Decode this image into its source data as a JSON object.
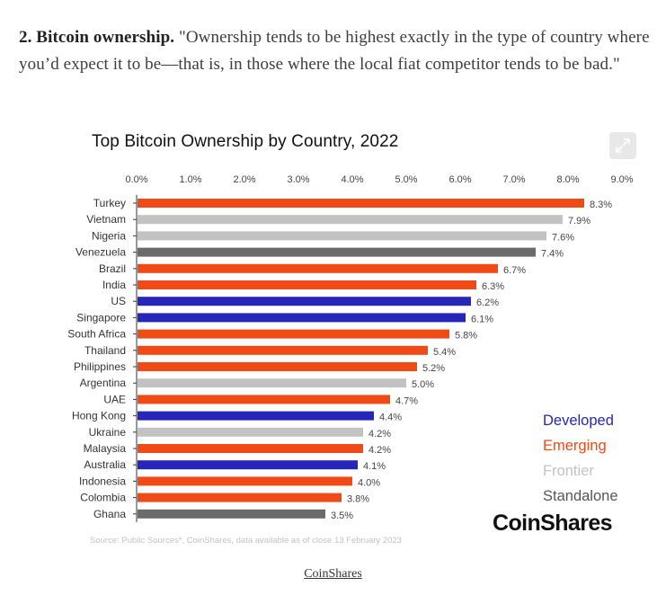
{
  "article": {
    "heading": "2. Bitcoin ownership.",
    "quote": " \"Ownership tends to be highest exactly in the type of country where you’d expect it to be—that is, in those where the local fiat competitor tends to be bad.\""
  },
  "figure": {
    "expand_icon": "expand-icon",
    "brand": "CoinShares",
    "source": "Source: Public Sources*, CoinShares, data available as of close 13 February 2023",
    "caption": "CoinShares"
  },
  "chart_data": {
    "type": "bar",
    "orientation": "horizontal",
    "title": "Top Bitcoin Ownership by Country, 2022",
    "xlabel": "",
    "ylabel": "",
    "xlim": [
      0,
      9
    ],
    "grid": false,
    "axis_position": "top",
    "tick_values": [
      0,
      1,
      2,
      3,
      4,
      5,
      6,
      7,
      8,
      9
    ],
    "tick_labels": [
      "0.0%",
      "1.0%",
      "2.0%",
      "3.0%",
      "4.0%",
      "5.0%",
      "6.0%",
      "7.0%",
      "8.0%",
      "9.0%"
    ],
    "categories": [
      "Turkey",
      "Vietnam",
      "Nigeria",
      "Venezuela",
      "Brazil",
      "India",
      "US",
      "Singapore",
      "South Africa",
      "Thailand",
      "Philippines",
      "Argentina",
      "UAE",
      "Hong Kong",
      "Ukraine",
      "Malaysia",
      "Australia",
      "Indonesia",
      "Colombia",
      "Ghana"
    ],
    "values": [
      8.3,
      7.9,
      7.6,
      7.4,
      6.7,
      6.3,
      6.2,
      6.1,
      5.8,
      5.4,
      5.2,
      5.0,
      4.7,
      4.4,
      4.2,
      4.2,
      4.1,
      4.0,
      3.8,
      3.5
    ],
    "value_labels": [
      "8.3%",
      "7.9%",
      "7.6%",
      "7.4%",
      "6.7%",
      "6.3%",
      "6.2%",
      "6.1%",
      "5.8%",
      "5.4%",
      "5.2%",
      "5.0%",
      "4.7%",
      "4.4%",
      "4.2%",
      "4.2%",
      "4.1%",
      "4.0%",
      "3.8%",
      "3.5%"
    ],
    "groups": [
      "Emerging",
      "Frontier",
      "Frontier",
      "Standalone",
      "Emerging",
      "Emerging",
      "Developed",
      "Developed",
      "Emerging",
      "Emerging",
      "Emerging",
      "Frontier",
      "Emerging",
      "Developed",
      "Frontier",
      "Emerging",
      "Developed",
      "Emerging",
      "Emerging",
      "Standalone"
    ],
    "legend": {
      "placement": "bottom-right",
      "entries": [
        {
          "name": "Developed",
          "color": "#2626b8"
        },
        {
          "name": "Emerging",
          "color": "#f04a16"
        },
        {
          "name": "Frontier",
          "color": "#c2c2c2"
        },
        {
          "name": "Standalone",
          "color": "#6b6b6b"
        }
      ]
    },
    "colors": {
      "Developed": "#2626b8",
      "Emerging": "#f04a16",
      "Frontier": "#c2c2c2",
      "Standalone": "#6b6b6b"
    }
  }
}
